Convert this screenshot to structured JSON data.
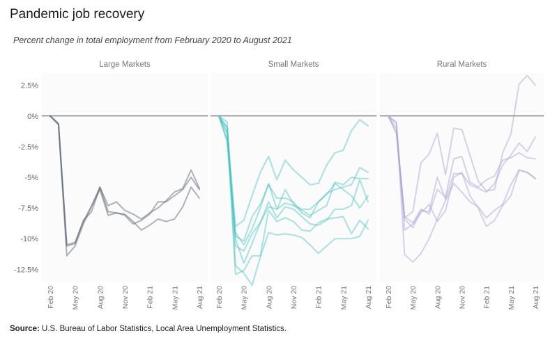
{
  "header": {
    "title": "Pandemic job recovery",
    "subtitle": "Percent change in total employment from February 2020 to August 2021"
  },
  "footer": {
    "source_label": "Source:",
    "source_text": "U.S. Bureau of Labor Statistics, Local Area Unemployment Statistics."
  },
  "chart_data": {
    "type": "line",
    "ylim": [
      -13.5,
      3.5
    ],
    "y_ticks": [
      2.5,
      0,
      -2.5,
      -5,
      -7.5,
      -10,
      -12.5
    ],
    "y_tick_labels": [
      "2.5%",
      "0%",
      "-2.5%",
      "-5%",
      "-7.5%",
      "-10%",
      "-12.5%"
    ],
    "x": [
      "Feb 20",
      "Mar 20",
      "Apr 20",
      "May 20",
      "Jun 20",
      "Jul 20",
      "Aug 20",
      "Sep 20",
      "Oct 20",
      "Nov 20",
      "Dec 20",
      "Jan 21",
      "Feb 21",
      "Mar 21",
      "Apr 21",
      "May 21",
      "Jun 21",
      "Jul 21",
      "Aug 21"
    ],
    "x_tick_labels": [
      "Feb 20",
      "May 20",
      "Aug 20",
      "Nov 20",
      "Feb 21",
      "May 21",
      "Aug 21"
    ],
    "x_tick_indices": [
      0,
      3,
      6,
      9,
      12,
      15,
      18
    ],
    "panels": [
      {
        "title": "Large Markets",
        "color": "#4e5a68",
        "series": [
          {
            "values": [
              0,
              -0.6,
              -10.6,
              -10.4,
              -8.5,
              -7.8,
              -5.8,
              -7.8,
              -7.9,
              -8.1,
              -8.8,
              -8.5,
              -8.0,
              -7.0,
              -7.0,
              -6.5,
              -6.0,
              -5.0,
              -6.0
            ]
          },
          {
            "values": [
              0,
              -0.7,
              -11.4,
              -10.6,
              -8.8,
              -7.4,
              -6.0,
              -8.1,
              -7.9,
              -8.0,
              -8.6,
              -9.3,
              -8.9,
              -8.4,
              -8.6,
              -8.4,
              -7.4,
              -5.8,
              -6.7
            ]
          },
          {
            "values": [
              0,
              -0.7,
              -10.5,
              -10.3,
              -8.6,
              -7.3,
              -5.8,
              -7.3,
              -7.0,
              -7.7,
              -8.0,
              -8.4,
              -7.9,
              -7.5,
              -6.9,
              -6.2,
              -5.9,
              -4.4,
              -5.9
            ]
          }
        ]
      },
      {
        "title": "Small Markets",
        "color": "#3cc4c4",
        "series": [
          {
            "values": [
              0,
              -0.5,
              -12.2,
              -12.8,
              -13.8,
              -11.5,
              -9.5,
              -9.7,
              -9.6,
              -9.7,
              -9.9,
              -10.5,
              -11.2,
              -10.6,
              -10.0,
              -10.0,
              -10.0,
              -9.8,
              -8.5
            ]
          },
          {
            "values": [
              0,
              -1.0,
              -9.0,
              -8.5,
              -6.5,
              -4.6,
              -3.3,
              -5.2,
              -3.6,
              -4.4,
              -5.0,
              -5.6,
              -5.5,
              -4.0,
              -3.0,
              -2.8,
              -1.2,
              -0.3,
              -0.8
            ]
          },
          {
            "values": [
              0,
              -2.0,
              -9.5,
              -10.5,
              -9.2,
              -7.5,
              -5.5,
              -7.6,
              -6.0,
              -7.2,
              -7.6,
              -7.6,
              -7.0,
              -6.3,
              -6.0,
              -5.8,
              -5.6,
              -4.2,
              -4.6
            ]
          },
          {
            "values": [
              0,
              -1.5,
              -10.0,
              -12.0,
              -10.4,
              -8.7,
              -7.0,
              -8.3,
              -7.4,
              -7.6,
              -8.2,
              -8.8,
              -8.9,
              -8.5,
              -7.6,
              -7.6,
              -7.3,
              -5.2,
              -7.0
            ]
          },
          {
            "values": [
              0,
              -0.9,
              -10.6,
              -11.0,
              -9.6,
              -8.7,
              -7.4,
              -7.6,
              -7.1,
              -7.3,
              -7.7,
              -8.1,
              -7.7,
              -7.3,
              -5.4,
              -5.6,
              -5.0,
              -5.1,
              -5.1
            ]
          },
          {
            "values": [
              0,
              -1.3,
              -12.9,
              -12.6,
              -11.4,
              -11.4,
              -7.7,
              -8.6,
              -8.3,
              -8.6,
              -9.3,
              -9.4,
              -8.7,
              -8.4,
              -8.3,
              -8.2,
              -9.6,
              -8.5,
              -9.2
            ]
          },
          {
            "values": [
              0,
              -2.1,
              -9.8,
              -10.2,
              -8.2,
              -7.2,
              -5.6,
              -6.7,
              -6.7,
              -7.0,
              -7.9,
              -8.3,
              -7.0,
              -6.4,
              -5.5,
              -6.0,
              -6.5,
              -7.5,
              -6.5
            ]
          }
        ]
      },
      {
        "title": "Rural Markets",
        "color": "#a99ed8",
        "series": [
          {
            "values": [
              0,
              -0.5,
              -11.3,
              -11.9,
              -11.2,
              -10.0,
              -8.4,
              -6.9,
              -5.5,
              -6.2,
              -7.0,
              -7.4,
              -8.3,
              -7.7,
              -7.2,
              -5.6,
              -4.4,
              -4.6,
              -5.1
            ]
          },
          {
            "values": [
              0,
              -1.0,
              -8.3,
              -7.8,
              -3.8,
              -3.1,
              -1.4,
              -4.8,
              -1.0,
              -1.1,
              -3.2,
              -5.3,
              -6.1,
              -6.0,
              -3.0,
              -1.5,
              2.6,
              3.3,
              2.5
            ]
          },
          {
            "values": [
              0,
              -1.4,
              -8.4,
              -9.1,
              -7.7,
              -7.8,
              -5.0,
              -6.8,
              -4.7,
              -4.7,
              -5.6,
              -5.9,
              -6.2,
              -5.5,
              -4.0,
              -3.2,
              -2.2,
              -2.9,
              -1.7
            ]
          },
          {
            "values": [
              0,
              -1.4,
              -8.2,
              -8.7,
              -7.6,
              -8.0,
              -6.0,
              -6.6,
              -3.5,
              -3.3,
              -5.4,
              -5.8,
              -5.2,
              -4.9,
              -3.6,
              -3.4,
              -3.0,
              -3.4,
              -3.5
            ]
          },
          {
            "values": [
              0,
              -0.6,
              -9.3,
              -8.8,
              -7.9,
              -7.2,
              -8.6,
              -7.7,
              -5.0,
              -4.6,
              -6.5,
              -7.5,
              -9.0,
              -8.5,
              -7.3,
              -6.5,
              -4.4,
              -4.6,
              -5.1
            ]
          }
        ]
      }
    ]
  }
}
